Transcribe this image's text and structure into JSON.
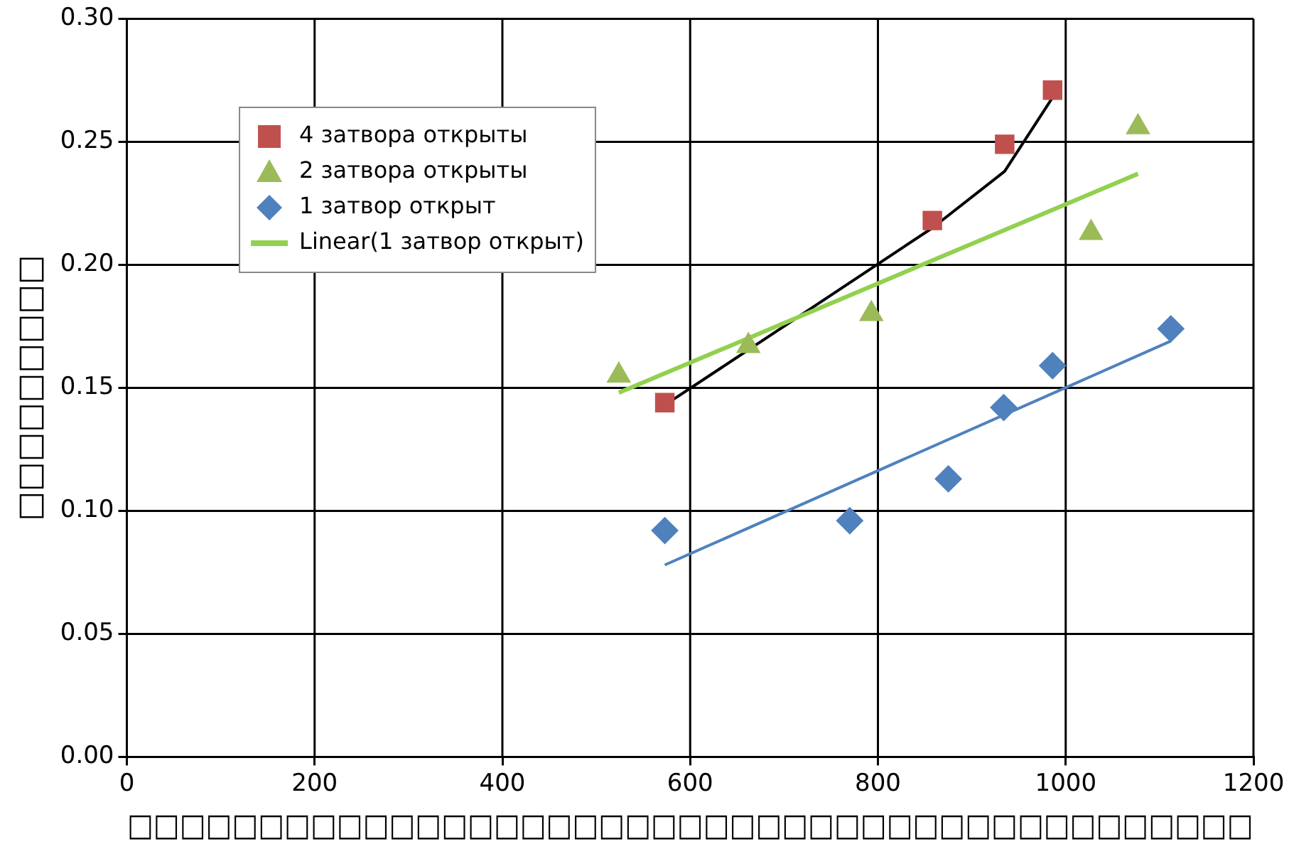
{
  "chart_data": {
    "type": "scatter",
    "xlabel": "□□□□□□□□□□□□□□□□□□□□□□□□□□□□□□□□□□□□□□□□□□□",
    "ylabel": "□□□□□□□□□",
    "xlim": [
      0,
      1200
    ],
    "xticks": [
      0,
      200,
      400,
      600,
      800,
      1000,
      1200
    ],
    "ylim": [
      0,
      0.3
    ],
    "yticks": [
      {
        "value": 0,
        "label": "0.00"
      },
      {
        "value": 0.05,
        "label": "0.05"
      },
      {
        "value": 0.1,
        "label": "0.10"
      },
      {
        "value": 0.15,
        "label": "0.15"
      },
      {
        "value": 0.2,
        "label": "0.20"
      },
      {
        "value": 0.25,
        "label": "0.25"
      },
      {
        "value": 0.3,
        "label": "0.30"
      }
    ],
    "grid": true,
    "legend": "top left",
    "series": [
      {
        "name": "4 затвора открыты",
        "color": "#c0504d",
        "marker": "square",
        "x": [
          573,
          858,
          935,
          986
        ],
        "values": [
          0.144,
          0.218,
          0.249,
          0.271
        ]
      },
      {
        "name": "2 затвора открыты",
        "color": "#9bbb59",
        "marker": "triangle",
        "x": [
          524,
          662,
          793,
          1027,
          1077
        ],
        "values": [
          0.155,
          0.167,
          0.18,
          0.213,
          0.256
        ]
      },
      {
        "name": "1 затвор открыт",
        "color": "#4f81bd",
        "marker": "diamond",
        "x": [
          573,
          770,
          875,
          934,
          986,
          1112
        ],
        "values": [
          0.092,
          0.096,
          0.113,
          0.142,
          0.159,
          0.174
        ]
      },
      {
        "name": "Linear(1 затвор открыт)",
        "type": "line",
        "color": "#92d050",
        "marker": "none",
        "x": [
          524,
          1077
        ],
        "values": [
          0.148,
          0.237
        ]
      },
      {
        "type": "line",
        "color": "#4f81bd",
        "marker": "none",
        "x": [
          573,
          1112
        ],
        "values": [
          0.078,
          0.169
        ]
      },
      {
        "type": "line",
        "color": "#000000",
        "marker": "none",
        "x": [
          573,
          700,
          858,
          935,
          986
        ],
        "values": [
          0.143,
          0.175,
          0.215,
          0.238,
          0.268
        ]
      }
    ]
  }
}
